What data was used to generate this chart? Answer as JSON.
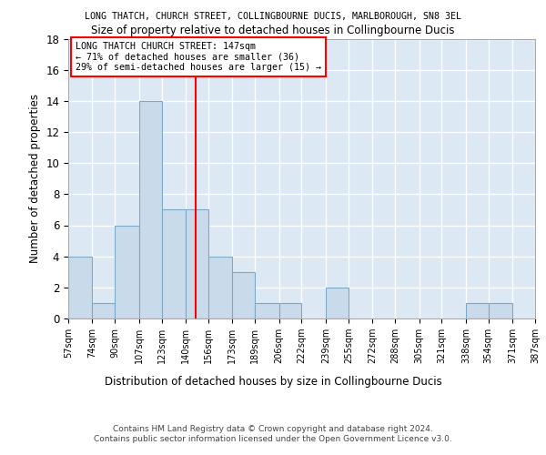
{
  "title": "LONG THATCH, CHURCH STREET, COLLINGBOURNE DUCIS, MARLBOROUGH, SN8 3EL",
  "subtitle": "Size of property relative to detached houses in Collingbourne Ducis",
  "xlabel": "Distribution of detached houses by size in Collingbourne Ducis",
  "ylabel": "Number of detached properties",
  "bin_edges": [
    57,
    74,
    90,
    107,
    123,
    140,
    156,
    173,
    189,
    206,
    222,
    239,
    255,
    272,
    288,
    305,
    321,
    338,
    354,
    371,
    387
  ],
  "bin_counts": [
    4,
    1,
    6,
    14,
    7,
    7,
    4,
    3,
    1,
    1,
    0,
    2,
    0,
    0,
    0,
    0,
    0,
    1,
    1,
    0
  ],
  "bar_color": "#c9daea",
  "bar_edge_color": "#7aaac8",
  "vline_x": 147,
  "vline_color": "red",
  "annotation_text": "LONG THATCH CHURCH STREET: 147sqm\n← 71% of detached houses are smaller (36)\n29% of semi-detached houses are larger (15) →",
  "annotation_box_color": "white",
  "annotation_box_edge_color": "red",
  "ylim": [
    0,
    18
  ],
  "yticks": [
    0,
    2,
    4,
    6,
    8,
    10,
    12,
    14,
    16,
    18
  ],
  "tick_labels": [
    "57sqm",
    "74sqm",
    "90sqm",
    "107sqm",
    "123sqm",
    "140sqm",
    "156sqm",
    "173sqm",
    "189sqm",
    "206sqm",
    "222sqm",
    "239sqm",
    "255sqm",
    "272sqm",
    "288sqm",
    "305sqm",
    "321sqm",
    "338sqm",
    "354sqm",
    "371sqm",
    "387sqm"
  ],
  "footer_text": "Contains HM Land Registry data © Crown copyright and database right 2024.\nContains public sector information licensed under the Open Government Licence v3.0.",
  "background_color": "#dde8f5",
  "grid_color": "white"
}
